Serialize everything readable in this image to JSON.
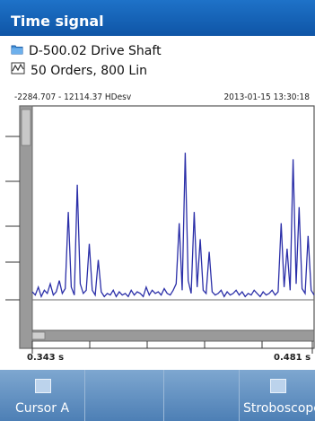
{
  "title": "Time signal",
  "info": {
    "machine": "D-500.02 Drive Shaft",
    "measurement": "50 Orders, 800 Lin"
  },
  "plot": {
    "range_text": "-2284.707 - 12114.37 HDesv",
    "timestamp": "2013-01-15 13:30:18",
    "x_start_label": "0.343 s",
    "x_end_label": "0.481 s"
  },
  "softkeys": [
    {
      "label": "Cursor A",
      "has_indicator": true
    },
    {
      "label": "",
      "has_indicator": false
    },
    {
      "label": "",
      "has_indicator": false
    },
    {
      "label": "Stroboscope",
      "has_indicator": true
    }
  ],
  "colors": {
    "title_bar": "#1565c0",
    "signal": "#2b2fa8",
    "softkey_bar": "#5b89bd"
  },
  "chart_data": {
    "type": "line",
    "series": [
      {
        "values": [
          0.05,
          0.03,
          0.08,
          0.02,
          0.06,
          0.04,
          0.1,
          0.03,
          0.05,
          0.12,
          0.04,
          0.07,
          0.55,
          0.08,
          0.03,
          0.72,
          0.1,
          0.04,
          0.06,
          0.35,
          0.06,
          0.03,
          0.25,
          0.05,
          0.02,
          0.04,
          0.03,
          0.06,
          0.02,
          0.05,
          0.03,
          0.04,
          0.02,
          0.06,
          0.03,
          0.05,
          0.04,
          0.02,
          0.08,
          0.03,
          0.06,
          0.04,
          0.05,
          0.03,
          0.07,
          0.04,
          0.03,
          0.06,
          0.1,
          0.48,
          0.06,
          0.92,
          0.12,
          0.04,
          0.55,
          0.08,
          0.38,
          0.06,
          0.04,
          0.3,
          0.05,
          0.03,
          0.04,
          0.06,
          0.02,
          0.05,
          0.03,
          0.04,
          0.06,
          0.03,
          0.05,
          0.02,
          0.04,
          0.03,
          0.06,
          0.04,
          0.02,
          0.05,
          0.03,
          0.04,
          0.06,
          0.03,
          0.05,
          0.48,
          0.08,
          0.32,
          0.06,
          0.88,
          0.1,
          0.58,
          0.07,
          0.04,
          0.4,
          0.06,
          0.03
        ]
      }
    ],
    "baseline": 0.0,
    "xlim": [
      0.343,
      0.481
    ],
    "xlabel": "",
    "ylabel": "",
    "grid": false
  }
}
